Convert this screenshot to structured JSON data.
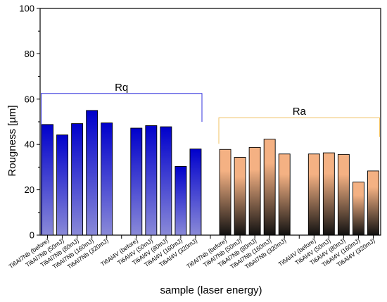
{
  "chart_data": {
    "type": "bar",
    "xlabel": "sample (laser energy)",
    "ylabel": "Rougness [µm]",
    "ylim": [
      0,
      100
    ],
    "yticks": [
      0,
      20,
      40,
      60,
      80,
      100
    ],
    "grid": false,
    "categories": [
      "Ti6Al7Nb (before)",
      "Ti6Al7Nb (50mJ)",
      "Ti6Al7Nb (80mJ)",
      "Ti6Al7Nb (160mJ)",
      "Ti6Al7Nb (320mJ)",
      "",
      "Ti6Al4V (before)",
      "Ti6Al4V (50mJ)",
      "Ti6Al4V (80mJ)",
      "Ti6Al4V (160mJ)",
      "Ti6Al4V (320mJ)",
      "",
      "Ti6Al7Nb (before)",
      "Ti6Al7Nb (50mJ)",
      "Ti6Al7Nb (80mJ)",
      "Ti6Al7Nb (160mJ)",
      "Ti6Al7Nb (320mJ)",
      "",
      "Ti6Al4V (before)",
      "Ti6Al4V (50mJ)",
      "Ti6Al4V (80mJ)",
      "Ti6Al4V (160mJ)",
      "Ti6Al4V (320mJ)"
    ],
    "series": [
      {
        "name": "Rq",
        "color_top": "#0000cc",
        "color_bottom": "#8a8ad8",
        "bracket_color": "#3333dd",
        "values": [
          48.8,
          44.2,
          49.2,
          55.0,
          49.5,
          null,
          47.2,
          48.3,
          47.8,
          30.3,
          38.0,
          null,
          null,
          null,
          null,
          null,
          null,
          null,
          null,
          null,
          null,
          null,
          null
        ]
      },
      {
        "name": "Ra",
        "color_top": "#f4b183",
        "color_bottom": "#111111",
        "bracket_color": "#f0c060",
        "values": [
          null,
          null,
          null,
          null,
          null,
          null,
          null,
          null,
          null,
          null,
          null,
          null,
          37.8,
          34.3,
          38.7,
          42.3,
          35.8,
          null,
          35.8,
          36.3,
          35.6,
          23.4,
          28.3
        ]
      }
    ]
  }
}
